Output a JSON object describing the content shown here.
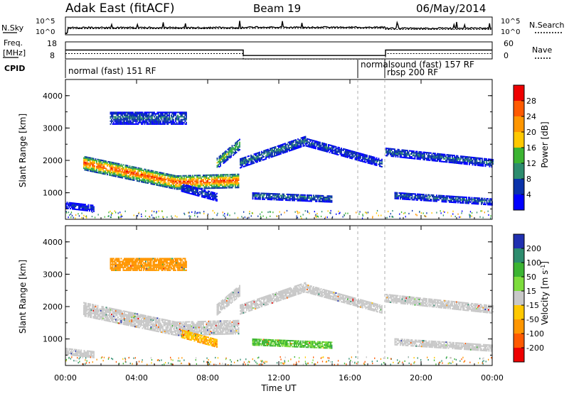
{
  "header": {
    "station": "Adak East (fitACF)",
    "beam": "Beam 19",
    "date": "06/May/2014"
  },
  "strip": {
    "left_noise_label": "N.Sky",
    "right_noise_label": "N.Search",
    "noise_ticks": [
      "10^5",
      "10^0"
    ],
    "freq_label": "Freq.",
    "freq_unit": "[MHz]",
    "freq_ticks": [
      "18",
      "8"
    ],
    "nave_label": "Nave",
    "nave_ticks": [
      "60",
      "0"
    ],
    "cpid_label": "CPID",
    "modes": [
      {
        "label": "normal (fast) 151 RF",
        "start_hour": 0
      },
      {
        "label": "normalsound (fast) 157 RF",
        "start_hour": 16.5
      },
      {
        "label": "rbsp 200 RF",
        "start_hour": 18
      }
    ]
  },
  "panels": {
    "ylabel": "Slant Range [km]",
    "yticks": [
      "4000",
      "3000",
      "2000",
      "1000"
    ],
    "xticks": [
      "00:00",
      "04:00",
      "08:00",
      "12:00",
      "16:00",
      "20:00",
      "00:00"
    ],
    "xlabel": "Time UT"
  },
  "power_scale": {
    "title": "Power [dB]",
    "ticks": [
      "28",
      "24",
      "20",
      "16",
      "12",
      "8",
      "4"
    ],
    "colors": [
      "#ee0000",
      "#ff5a00",
      "#ff9600",
      "#ffc800",
      "#3cb432",
      "#2d8c6e",
      "#0a32aa",
      "#0000ff"
    ]
  },
  "velocity_scale": {
    "title": "Velocity [m s",
    "title_sup": "-1",
    "title_end": "]",
    "ticks": [
      "200",
      "100",
      "50",
      "15",
      "-15",
      "-50",
      "-100",
      "-200"
    ],
    "colors": [
      "#2030b0",
      "#2d8c6e",
      "#3cb432",
      "#7ddc3c",
      "#c8c8c8",
      "#ffc800",
      "#ff9600",
      "#ff5a00",
      "#ee0000"
    ]
  },
  "chart_data": [
    {
      "type": "heatmap",
      "title": "Power",
      "xlabel": "Time UT",
      "ylabel": "Slant Range [km]",
      "xlim_hours": [
        0,
        24
      ],
      "ylim_km": [
        180,
        4500
      ],
      "colorbar": {
        "label": "Power [dB]",
        "range": [
          0,
          30
        ]
      },
      "echo_bands": [
        {
          "t0": 1.0,
          "t1": 9.7,
          "r_start": 1900,
          "r_end": 1350,
          "r_dip_hour": 6.2,
          "r_dip": 1300,
          "thickness_km": 420,
          "peak_db": 26
        },
        {
          "t0": 8.5,
          "t1": 9.8,
          "r_start": 1900,
          "r_end": 2500,
          "thickness_km": 350,
          "peak_db": 14
        },
        {
          "t0": 9.8,
          "t1": 13.5,
          "r_start": 1900,
          "r_end": 2600,
          "thickness_km": 300,
          "peak_db": 9
        },
        {
          "t0": 13.5,
          "t1": 17.8,
          "r_start": 2550,
          "r_end": 1900,
          "thickness_km": 250,
          "peak_db": 7
        },
        {
          "t0": 18.0,
          "t1": 24.0,
          "r_start": 2250,
          "r_end": 1900,
          "thickness_km": 250,
          "peak_db": 8
        },
        {
          "t0": 2.5,
          "t1": 6.8,
          "r_start": 3300,
          "r_end": 3300,
          "thickness_km": 400,
          "peak_db": 8
        },
        {
          "t0": 10.5,
          "t1": 15.0,
          "r_start": 900,
          "r_end": 800,
          "thickness_km": 220,
          "peak_db": 9
        },
        {
          "t0": 18.5,
          "t1": 24.0,
          "r_start": 900,
          "r_end": 700,
          "thickness_km": 200,
          "peak_db": 8
        },
        {
          "t0": 0.0,
          "t1": 1.6,
          "r_start": 600,
          "r_end": 500,
          "thickness_km": 200,
          "peak_db": 5
        },
        {
          "t0": 6.5,
          "t1": 8.5,
          "r_start": 1150,
          "r_end": 850,
          "thickness_km": 250,
          "peak_db": 6
        }
      ]
    },
    {
      "type": "heatmap",
      "title": "Velocity",
      "xlabel": "Time UT",
      "ylabel": "Slant Range [km]",
      "xlim_hours": [
        0,
        24
      ],
      "ylim_km": [
        180,
        4500
      ],
      "colorbar": {
        "label": "Velocity [m s-1]",
        "range": [
          -250,
          250
        ]
      },
      "echo_bands": [
        {
          "t0": 1.0,
          "t1": 9.7,
          "r_start": 1900,
          "r_end": 1350,
          "r_dip_hour": 6.2,
          "r_dip": 1300,
          "thickness_km": 420,
          "velocity": 0
        },
        {
          "t0": 8.5,
          "t1": 9.8,
          "r_start": 1900,
          "r_end": 2500,
          "thickness_km": 350,
          "velocity": 0
        },
        {
          "t0": 9.8,
          "t1": 13.5,
          "r_start": 1900,
          "r_end": 2600,
          "thickness_km": 300,
          "velocity": 0
        },
        {
          "t0": 13.5,
          "t1": 17.8,
          "r_start": 2550,
          "r_end": 1900,
          "thickness_km": 250,
          "velocity": 0
        },
        {
          "t0": 18.0,
          "t1": 24.0,
          "r_start": 2250,
          "r_end": 1900,
          "thickness_km": 250,
          "velocity": 0
        },
        {
          "t0": 2.5,
          "t1": 6.8,
          "r_start": 3300,
          "r_end": 3300,
          "thickness_km": 400,
          "velocity": -60
        },
        {
          "t0": 10.5,
          "t1": 15.0,
          "r_start": 900,
          "r_end": 800,
          "thickness_km": 220,
          "velocity": 35
        },
        {
          "t0": 18.5,
          "t1": 24.0,
          "r_start": 900,
          "r_end": 700,
          "thickness_km": 200,
          "velocity": 0
        },
        {
          "t0": 0.0,
          "t1": 1.6,
          "r_start": 600,
          "r_end": 500,
          "thickness_km": 200,
          "velocity": 0
        },
        {
          "t0": 6.5,
          "t1": 8.5,
          "r_start": 1150,
          "r_end": 850,
          "thickness_km": 250,
          "velocity": -30
        }
      ]
    },
    {
      "type": "line",
      "title": "Frequency",
      "ylabel": "Freq. [MHz]",
      "ylim": [
        8,
        18
      ],
      "x": [
        0,
        10,
        10,
        18,
        18,
        24
      ],
      "values": [
        13.2,
        13.2,
        10.0,
        10.0,
        13.2,
        13.2
      ]
    }
  ]
}
